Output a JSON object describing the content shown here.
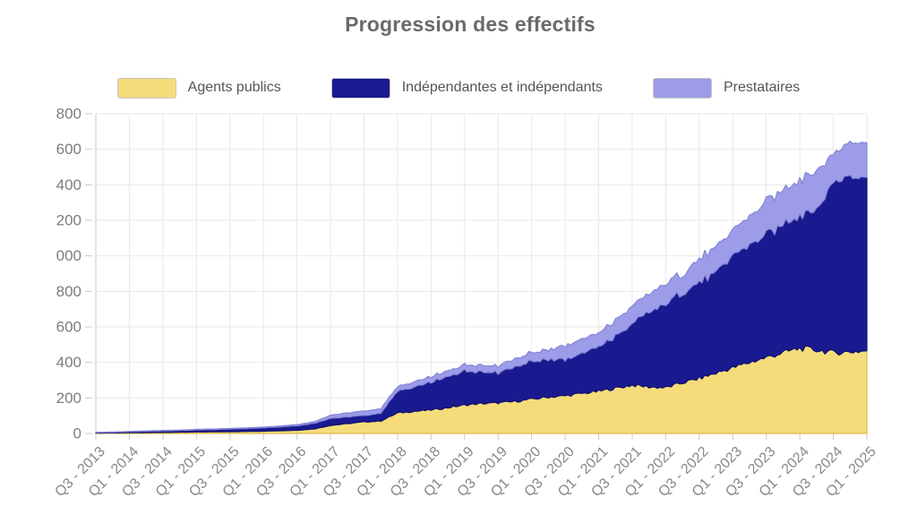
{
  "title": "Progression des effectifs",
  "chart_data": {
    "type": "area",
    "stacked": true,
    "title": "Progression des effectifs",
    "x_unit": "quarter",
    "grid": true,
    "legend_position": "top",
    "ylim": [
      0,
      1800
    ],
    "ytick_step": 200,
    "ytick_labels_visible_top_to_bottom": [
      "800",
      "600",
      "400",
      "200",
      "000",
      "800",
      "600",
      "400",
      "200",
      "0"
    ],
    "ytick_note": "labels for 1000-1800 are cut off at the left image edge (missing leading 1)",
    "xtick_labels": [
      "Q3 - 2013",
      "Q1 - 2014",
      "Q3 - 2014",
      "Q1 - 2015",
      "Q3 - 2015",
      "Q1 - 2016",
      "Q3 - 2016",
      "Q1 - 2017",
      "Q3 - 2017",
      "Q1 - 2018",
      "Q3 - 2018",
      "Q1 - 2019",
      "Q3 - 2019",
      "Q1 - 2020",
      "Q3 - 2020",
      "Q1 - 2021",
      "Q3 - 2021",
      "Q1 - 2022",
      "Q3 - 2022",
      "Q1 - 2023",
      "Q3 - 2023",
      "Q1 - 2024",
      "Q3 - 2024",
      "Q1 - 2025"
    ],
    "quarters": [
      "2013-Q3",
      "2013-Q4",
      "2014-Q1",
      "2014-Q2",
      "2014-Q3",
      "2014-Q4",
      "2015-Q1",
      "2015-Q2",
      "2015-Q3",
      "2015-Q4",
      "2016-Q1",
      "2016-Q2",
      "2016-Q3",
      "2016-Q4",
      "2017-Q1",
      "2017-Q2",
      "2017-Q3",
      "2017-Q4",
      "2018-Q1",
      "2018-Q2",
      "2018-Q3",
      "2018-Q4",
      "2019-Q1",
      "2019-Q2",
      "2019-Q3",
      "2019-Q4",
      "2020-Q1",
      "2020-Q2",
      "2020-Q3",
      "2020-Q4",
      "2021-Q1",
      "2021-Q2",
      "2021-Q3",
      "2021-Q4",
      "2022-Q1",
      "2022-Q2",
      "2022-Q3",
      "2022-Q4",
      "2023-Q1",
      "2023-Q2",
      "2023-Q3",
      "2023-Q4",
      "2024-Q1",
      "2024-Q2",
      "2024-Q3",
      "2024-Q4",
      "2025-Q1"
    ],
    "series": [
      {
        "name": "Agents publics",
        "slug": "agents-publics",
        "color": "#F4DC7B",
        "border": "#DDBB45",
        "values": [
          2,
          3,
          4,
          5,
          6,
          7,
          8,
          9,
          10,
          11,
          13,
          15,
          18,
          25,
          45,
          55,
          65,
          70,
          115,
          125,
          132,
          145,
          160,
          168,
          172,
          180,
          193,
          205,
          212,
          225,
          237,
          255,
          272,
          262,
          258,
          285,
          310,
          340,
          370,
          400,
          428,
          455,
          480,
          470,
          455,
          460,
          465
        ]
      },
      {
        "name": "Indépendantes et indépendants",
        "slug": "independantes-et-independants",
        "color": "#1A1A90",
        "border": "#10106C",
        "values": [
          3,
          4,
          6,
          7,
          9,
          10,
          12,
          13,
          15,
          17,
          19,
          22,
          26,
          32,
          40,
          38,
          35,
          45,
          122,
          135,
          155,
          175,
          193,
          180,
          170,
          195,
          212,
          215,
          200,
          225,
          252,
          290,
          343,
          420,
          468,
          510,
          542,
          560,
          633,
          660,
          691,
          720,
          750,
          790,
          957,
          1000,
          975
        ]
      },
      {
        "name": "Prestataires",
        "slug": "prestataires",
        "color": "#9C9CE8",
        "border": "#8585D8",
        "values": [
          1,
          1,
          1,
          2,
          2,
          2,
          3,
          3,
          3,
          4,
          4,
          5,
          6,
          8,
          18,
          22,
          25,
          25,
          25,
          30,
          30,
          32,
          35,
          37,
          38,
          45,
          48,
          55,
          77,
          80,
          76,
          90,
          101,
          100,
          116,
          105,
          131,
          140,
          141,
          160,
          186,
          195,
          201,
          220,
          160,
          190,
          195
        ]
      }
    ],
    "style": {
      "title_color": "#6A6A6A",
      "tick_label_color": "#878787",
      "legend_text_color": "#555555",
      "gridline_color": "#E8E8E8",
      "axis_line_color": "#C9C9C9"
    }
  }
}
